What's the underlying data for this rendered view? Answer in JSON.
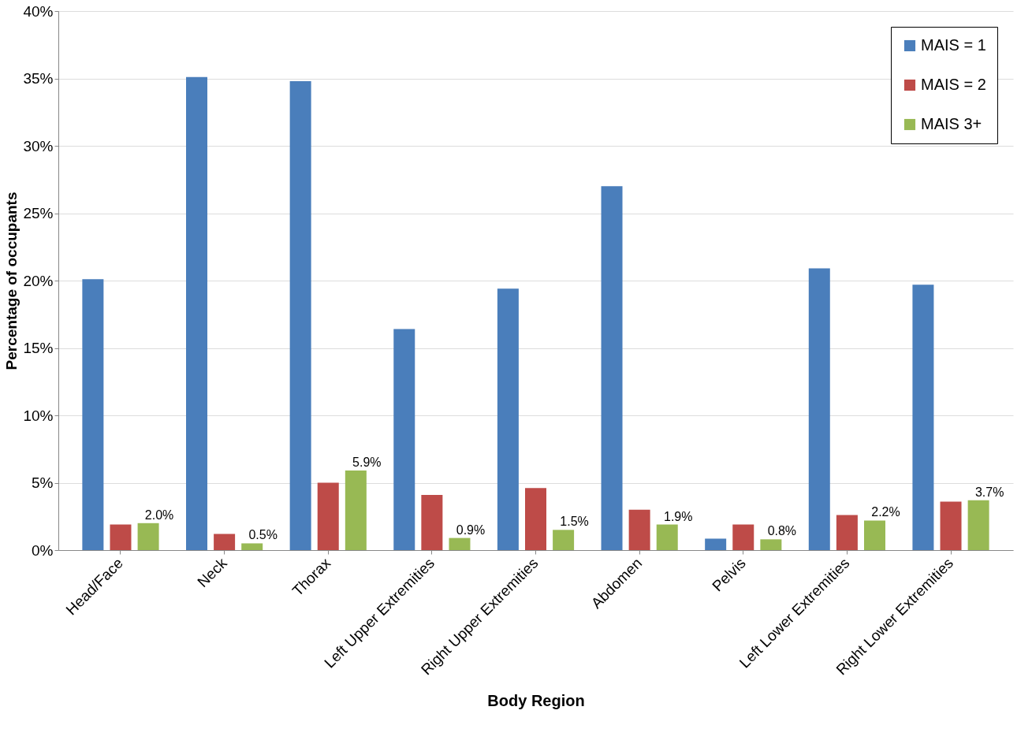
{
  "chart_data": {
    "type": "bar",
    "xlabel": "Body Region",
    "ylabel": "Percentage of occupants",
    "categories": [
      "Head/Face",
      "Neck",
      "Thorax",
      "Left Upper Extremities",
      "Right Upper Extremities",
      "Abdomen",
      "Pelvis",
      "Left Lower Extremities",
      "Right Lower Extremities"
    ],
    "series": [
      {
        "name": "MAIS = 1",
        "color": "#4a7ebb",
        "values": [
          20.1,
          35.1,
          34.8,
          16.4,
          19.4,
          27.0,
          0.85,
          20.9,
          19.7
        ]
      },
      {
        "name": "MAIS = 2",
        "color": "#be4b48",
        "values": [
          1.9,
          1.2,
          5.0,
          4.1,
          4.6,
          3.0,
          1.9,
          2.6,
          3.6
        ]
      },
      {
        "name": "MAIS 3+",
        "color": "#98b954",
        "values": [
          2.0,
          0.5,
          5.9,
          0.9,
          1.5,
          1.9,
          0.8,
          2.2,
          3.7
        ],
        "value_labels": [
          "2.0%",
          "0.5%",
          "5.9%",
          "0.9%",
          "1.5%",
          "1.9%",
          "0.8%",
          "2.2%",
          "3.7%"
        ]
      }
    ],
    "ylim": [
      0,
      40
    ],
    "yticks": [
      {
        "value": 0,
        "label": "0%"
      },
      {
        "value": 5,
        "label": "5%"
      },
      {
        "value": 10,
        "label": "10%"
      },
      {
        "value": 15,
        "label": "15%"
      },
      {
        "value": 20,
        "label": "20%"
      },
      {
        "value": 25,
        "label": "25%"
      },
      {
        "value": 30,
        "label": "30%"
      },
      {
        "value": 35,
        "label": "35%"
      },
      {
        "value": 40,
        "label": "40%"
      }
    ],
    "grid": "y",
    "legend": "top right"
  }
}
